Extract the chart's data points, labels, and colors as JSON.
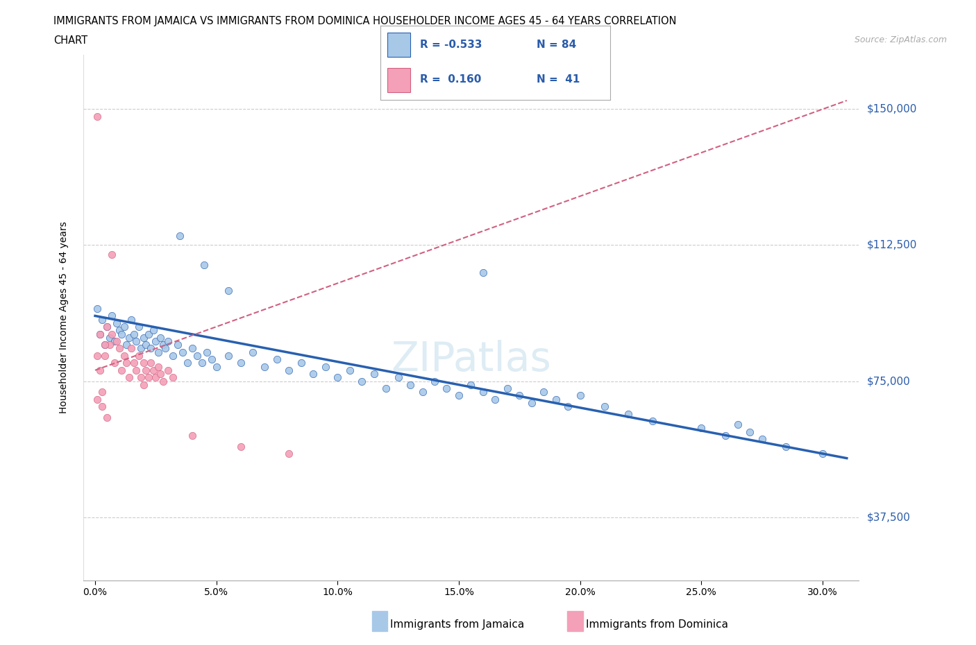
{
  "title_line1": "IMMIGRANTS FROM JAMAICA VS IMMIGRANTS FROM DOMINICA HOUSEHOLDER INCOME AGES 45 - 64 YEARS CORRELATION",
  "title_line2": "CHART",
  "source_text": "Source: ZipAtlas.com",
  "ylabel": "Householder Income Ages 45 - 64 years",
  "xlabel_ticks": [
    "0.0%",
    "5.0%",
    "10.0%",
    "15.0%",
    "20.0%",
    "25.0%",
    "30.0%"
  ],
  "xlabel_vals": [
    0.0,
    0.05,
    0.1,
    0.15,
    0.2,
    0.25,
    0.3
  ],
  "ytick_labels": [
    "$37,500",
    "$75,000",
    "$112,500",
    "$150,000"
  ],
  "ytick_vals": [
    37500,
    75000,
    112500,
    150000
  ],
  "ylim": [
    20000,
    165000
  ],
  "xlim": [
    -0.005,
    0.315
  ],
  "jamaica_color": "#a8c8e8",
  "dominica_color": "#f4a0b8",
  "jamaica_line_color": "#2860b0",
  "dominica_line_color": "#d06080",
  "R_jamaica": -0.533,
  "N_jamaica": 84,
  "R_dominica": 0.16,
  "N_dominica": 41,
  "legend_label_jamaica": "Immigrants from Jamaica",
  "legend_label_dominica": "Immigrants from Dominica",
  "legend_R_color": "#2a5caa",
  "background_color": "#ffffff",
  "grid_color": "#cccccc",
  "watermark": "ZIPatlas",
  "jamaica_scatter_x": [
    0.001,
    0.002,
    0.003,
    0.004,
    0.005,
    0.006,
    0.007,
    0.008,
    0.009,
    0.01,
    0.011,
    0.012,
    0.013,
    0.014,
    0.015,
    0.016,
    0.017,
    0.018,
    0.019,
    0.02,
    0.021,
    0.022,
    0.023,
    0.024,
    0.025,
    0.026,
    0.027,
    0.028,
    0.029,
    0.03,
    0.032,
    0.034,
    0.036,
    0.038,
    0.04,
    0.042,
    0.044,
    0.046,
    0.048,
    0.05,
    0.055,
    0.06,
    0.065,
    0.07,
    0.075,
    0.08,
    0.085,
    0.09,
    0.095,
    0.1,
    0.105,
    0.11,
    0.115,
    0.12,
    0.125,
    0.13,
    0.135,
    0.14,
    0.145,
    0.15,
    0.155,
    0.16,
    0.165,
    0.17,
    0.175,
    0.18,
    0.185,
    0.19,
    0.195,
    0.2,
    0.21,
    0.22,
    0.23,
    0.25,
    0.26,
    0.265,
    0.27,
    0.275,
    0.285,
    0.3,
    0.035,
    0.045,
    0.055,
    0.16
  ],
  "jamaica_scatter_y": [
    95000,
    88000,
    92000,
    85000,
    90000,
    87000,
    93000,
    86000,
    91000,
    89000,
    88000,
    90000,
    85000,
    87000,
    92000,
    88000,
    86000,
    90000,
    84000,
    87000,
    85000,
    88000,
    84000,
    89000,
    86000,
    83000,
    87000,
    85000,
    84000,
    86000,
    82000,
    85000,
    83000,
    80000,
    84000,
    82000,
    80000,
    83000,
    81000,
    79000,
    82000,
    80000,
    83000,
    79000,
    81000,
    78000,
    80000,
    77000,
    79000,
    76000,
    78000,
    75000,
    77000,
    73000,
    76000,
    74000,
    72000,
    75000,
    73000,
    71000,
    74000,
    72000,
    70000,
    73000,
    71000,
    69000,
    72000,
    70000,
    68000,
    71000,
    68000,
    66000,
    64000,
    62000,
    60000,
    63000,
    61000,
    59000,
    57000,
    55000,
    115000,
    107000,
    100000,
    105000
  ],
  "dominica_scatter_x": [
    0.001,
    0.002,
    0.003,
    0.004,
    0.005,
    0.006,
    0.007,
    0.008,
    0.009,
    0.01,
    0.011,
    0.012,
    0.013,
    0.014,
    0.015,
    0.016,
    0.017,
    0.018,
    0.019,
    0.02,
    0.021,
    0.022,
    0.023,
    0.024,
    0.025,
    0.026,
    0.027,
    0.028,
    0.03,
    0.032,
    0.001,
    0.003,
    0.005,
    0.007,
    0.02,
    0.04,
    0.06,
    0.08,
    0.001,
    0.002,
    0.004
  ],
  "dominica_scatter_y": [
    148000,
    88000,
    72000,
    82000,
    90000,
    85000,
    88000,
    80000,
    86000,
    84000,
    78000,
    82000,
    80000,
    76000,
    84000,
    80000,
    78000,
    82000,
    76000,
    80000,
    78000,
    76000,
    80000,
    78000,
    76000,
    79000,
    77000,
    75000,
    78000,
    76000,
    70000,
    68000,
    65000,
    110000,
    74000,
    60000,
    57000,
    55000,
    82000,
    78000,
    85000
  ]
}
